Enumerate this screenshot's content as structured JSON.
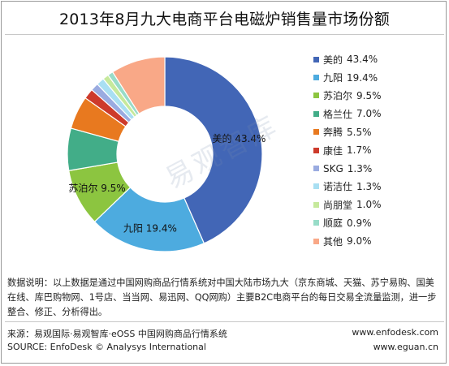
{
  "title": "2013年8月九大电商平台电磁炉销售量市场份额",
  "watermark": "易观智库",
  "chart_data": {
    "type": "pie",
    "title": "2013年8月九大电商平台电磁炉销售量市场份额",
    "donut": true,
    "legend_position": "right",
    "unit": "%",
    "slices": [
      {
        "name": "美的",
        "value": 43.4,
        "label": "43.4%",
        "color": "#4266b6",
        "show_label": true
      },
      {
        "name": "九阳",
        "value": 19.4,
        "label": "19.4%",
        "color": "#4dabdf",
        "show_label": true
      },
      {
        "name": "苏泊尔",
        "value": 9.5,
        "label": "9.5%",
        "color": "#8cc540",
        "show_label": true
      },
      {
        "name": "格兰仕",
        "value": 7.0,
        "label": "7.0%",
        "color": "#42ad88",
        "show_label": false
      },
      {
        "name": "奔腾",
        "value": 5.5,
        "label": "5.5%",
        "color": "#e8791f",
        "show_label": false
      },
      {
        "name": "康佳",
        "value": 1.7,
        "label": "1.7%",
        "color": "#cd3a2b",
        "show_label": false
      },
      {
        "name": "SKG",
        "value": 1.3,
        "label": "1.3%",
        "color": "#9aabe0",
        "show_label": false
      },
      {
        "name": "诺洁仕",
        "value": 1.3,
        "label": "1.3%",
        "color": "#a9dff2",
        "show_label": false
      },
      {
        "name": "尚朋堂",
        "value": 1.0,
        "label": "1.0%",
        "color": "#c6e99c",
        "show_label": false
      },
      {
        "name": "顺庭",
        "value": 0.9,
        "label": "0.9%",
        "color": "#98dcc8",
        "show_label": false
      },
      {
        "name": "其他",
        "value": 9.0,
        "label": "9.0%",
        "color": "#f9a887",
        "show_label": false
      }
    ]
  },
  "note": "数据说明：以上数据是通过中国网购商品行情系统对中国大陆市场九大（京东商城、天猫、苏宁易购、国美在线、库巴购物网、1号店、当当网、易迅网、QQ网购）主要B2C电商平台的每日交易全流量监测，进一步整合、修正、分析得出。",
  "footer": {
    "source_cn": "来源：易观国际·易观智库·eOSS 中国网购商品行情系统",
    "source_en": "SOURCE: EnfoDesk © Analysys International",
    "url1": "www.enfodesk.com",
    "url2": "www.eguan.cn"
  }
}
